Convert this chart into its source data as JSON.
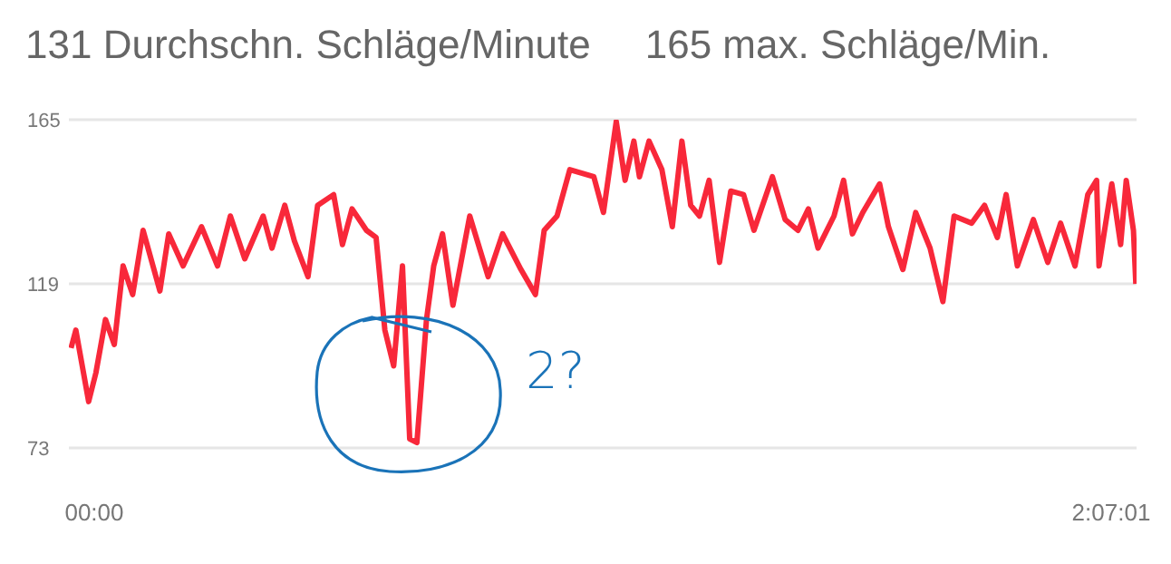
{
  "chart_data": {
    "type": "line",
    "title": "131 Durchschn. Schläge/Minute",
    "subtitle": "165 max. Schläge/Min.",
    "annotations": [
      "2?"
    ],
    "x": [
      -2.9,
      -2.3,
      -0.7,
      0.2,
      1.4,
      2.5,
      3.6,
      4.8,
      6.1,
      8.2,
      9.3,
      11.1,
      13.4,
      15.4,
      17.0,
      18.8,
      21.1,
      22.2,
      23.8,
      25.0,
      26.7,
      27.9,
      29.9,
      31.0,
      32.2,
      34.0,
      35.2,
      36.3,
      37.4,
      38.5,
      39.4,
      40.3,
      41.5,
      42.4,
      43.5,
      44.8,
      46.9,
      49.2,
      51.0,
      53.3,
      55.1,
      56.2,
      57.8,
      59.4,
      62.4,
      63.6,
      65.2,
      66.3,
      67.4,
      68.1,
      69.3,
      70.9,
      72.2,
      73.4,
      74.5,
      75.6,
      76.8,
      78.1,
      79.5,
      81.1,
      82.4,
      84.7,
      86.3,
      87.9,
      89.2,
      90.4,
      92.4,
      93.6,
      94.7,
      96.0,
      98.1,
      99.2,
      101.0,
      102.6,
      104.4,
      106.0,
      107.4,
      109.6,
      111.2,
      112.8,
      113.9,
      115.3,
      117.3,
      119.1,
      120.7,
      122.5,
      124.1,
      125.2,
      125.5,
      127.1,
      128.2,
      128.9,
      129.8,
      130.1
    ],
    "series": [
      {
        "color": "#f8283a",
        "values": [
          101,
          106,
          86,
          94,
          109,
          102,
          124,
          116,
          134,
          117,
          133,
          124,
          135,
          124,
          138,
          126,
          138,
          129,
          141,
          131,
          121,
          141,
          144,
          130,
          140,
          134,
          132,
          106,
          96,
          124,
          75.5,
          74.5,
          109,
          124,
          133,
          113,
          138,
          121,
          133,
          123,
          116,
          134,
          138,
          151,
          149,
          139,
          164.5,
          148,
          159,
          149,
          159,
          151,
          135,
          159,
          141,
          138,
          148,
          125,
          145,
          144,
          134,
          149,
          137,
          134,
          140,
          129,
          138,
          148,
          133,
          139,
          147,
          135,
          123,
          139,
          129,
          114,
          138,
          136,
          141,
          132,
          144,
          124,
          137,
          125,
          136,
          124,
          144,
          148,
          124,
          147,
          130,
          148,
          134,
          119
        ]
      }
    ],
    "xlim": [
      -3.17,
      130.19
    ],
    "xticks": [
      {
        "value": 0,
        "label": "00:00"
      },
      {
        "value": 127.02,
        "label": "2:07:01"
      }
    ],
    "ylim": [
      73,
      165
    ],
    "yticks": [
      73,
      119,
      165
    ],
    "grid": "y",
    "marker": "none",
    "line_style": "solid",
    "legend": false
  }
}
